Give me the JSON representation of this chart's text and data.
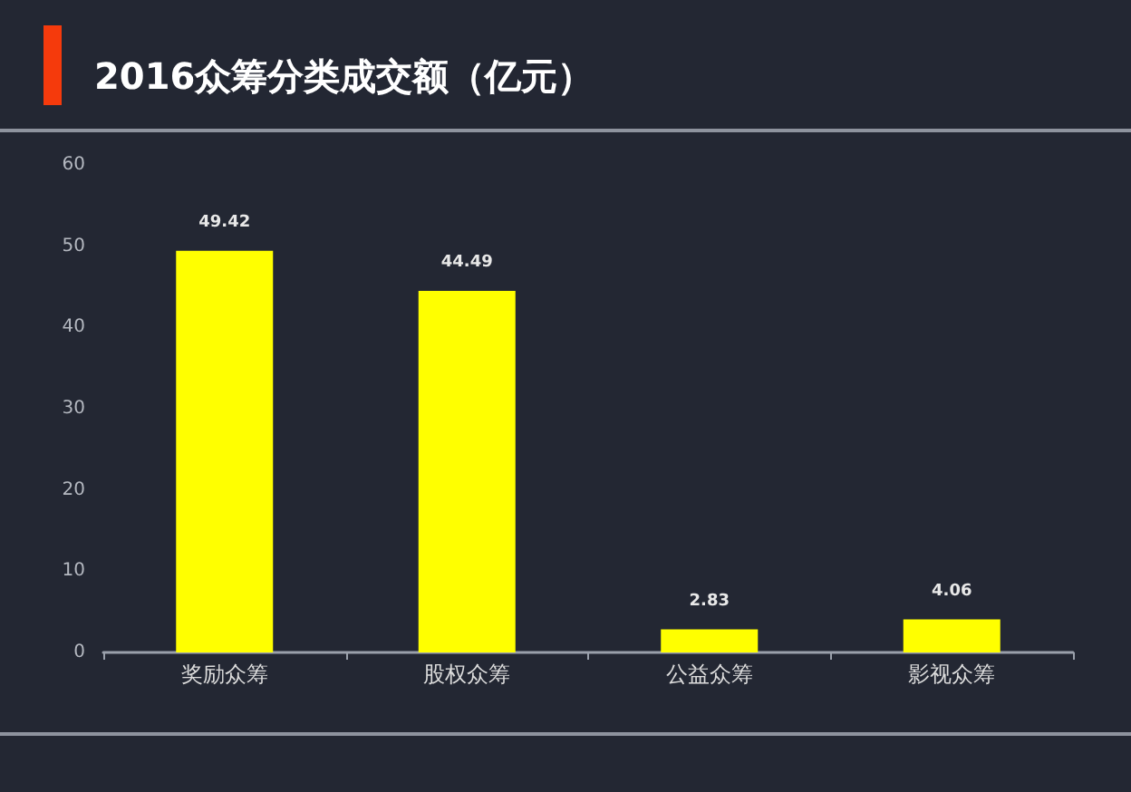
{
  "chart_data": {
    "type": "bar",
    "title": "2016众筹分类成交额（亿元）",
    "categories": [
      "奖励众筹",
      "股权众筹",
      "公益众筹",
      "影视众筹"
    ],
    "values": [
      49.42,
      44.49,
      2.83,
      4.06
    ],
    "color": "#ffff00",
    "ylim": [
      0,
      60
    ],
    "yticks": [
      0,
      10,
      20,
      30,
      40,
      50,
      60
    ],
    "data_labels": true
  }
}
